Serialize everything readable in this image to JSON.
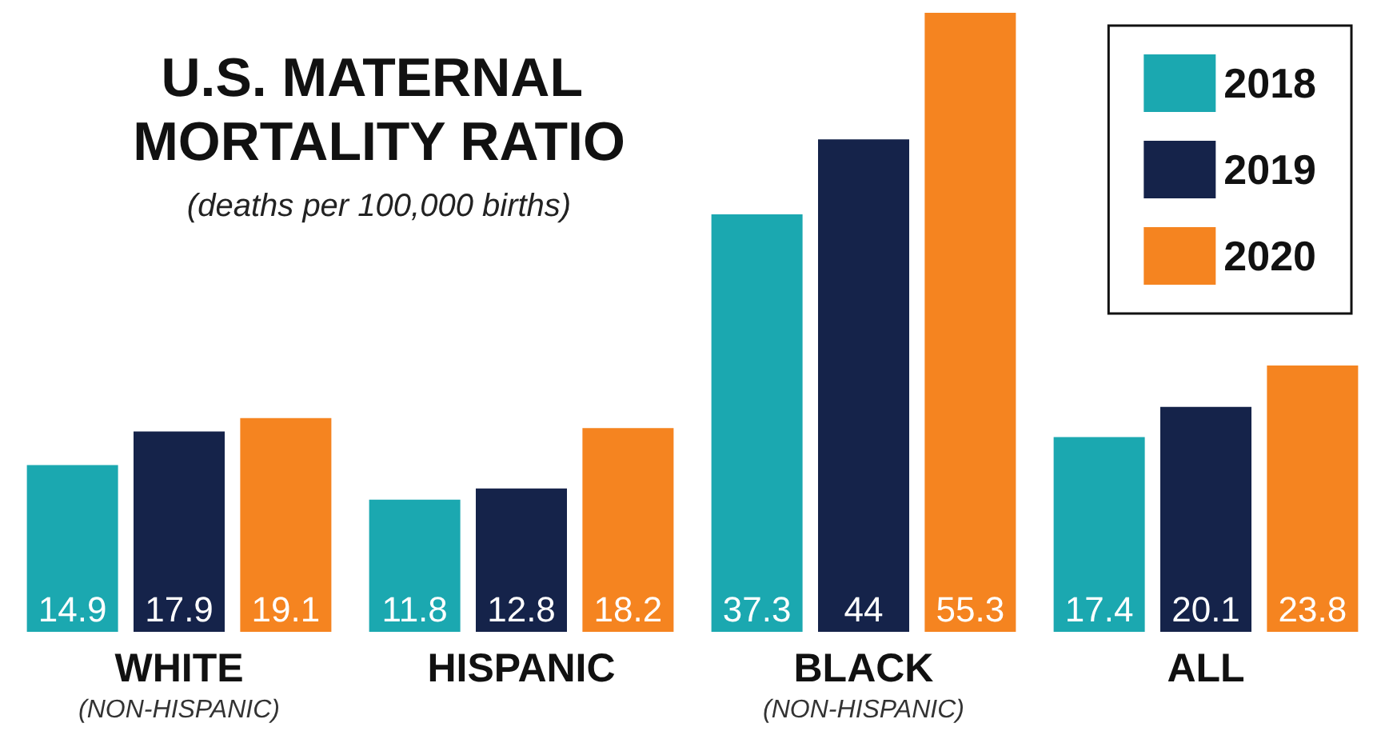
{
  "chart_data": {
    "type": "bar",
    "title": "U.S. MATERNAL MORTALITY RATIO",
    "subtitle": "(deaths per 100,000 births)",
    "categories": [
      "WHITE\n(NON-HISPANIC)",
      "HISPANIC",
      "BLACK\n(NON-HISPANIC)",
      "ALL"
    ],
    "series": [
      {
        "name": "2018",
        "color": "#1ba8b0",
        "values": [
          14.9,
          11.8,
          37.3,
          17.4
        ]
      },
      {
        "name": "2019",
        "color": "#15234a",
        "values": [
          17.9,
          12.8,
          44,
          20.1
        ]
      },
      {
        "name": "2020",
        "color": "#f58420",
        "values": [
          19.1,
          18.2,
          55.3,
          23.8
        ]
      }
    ],
    "data_labels": true,
    "legend": "top right"
  }
}
